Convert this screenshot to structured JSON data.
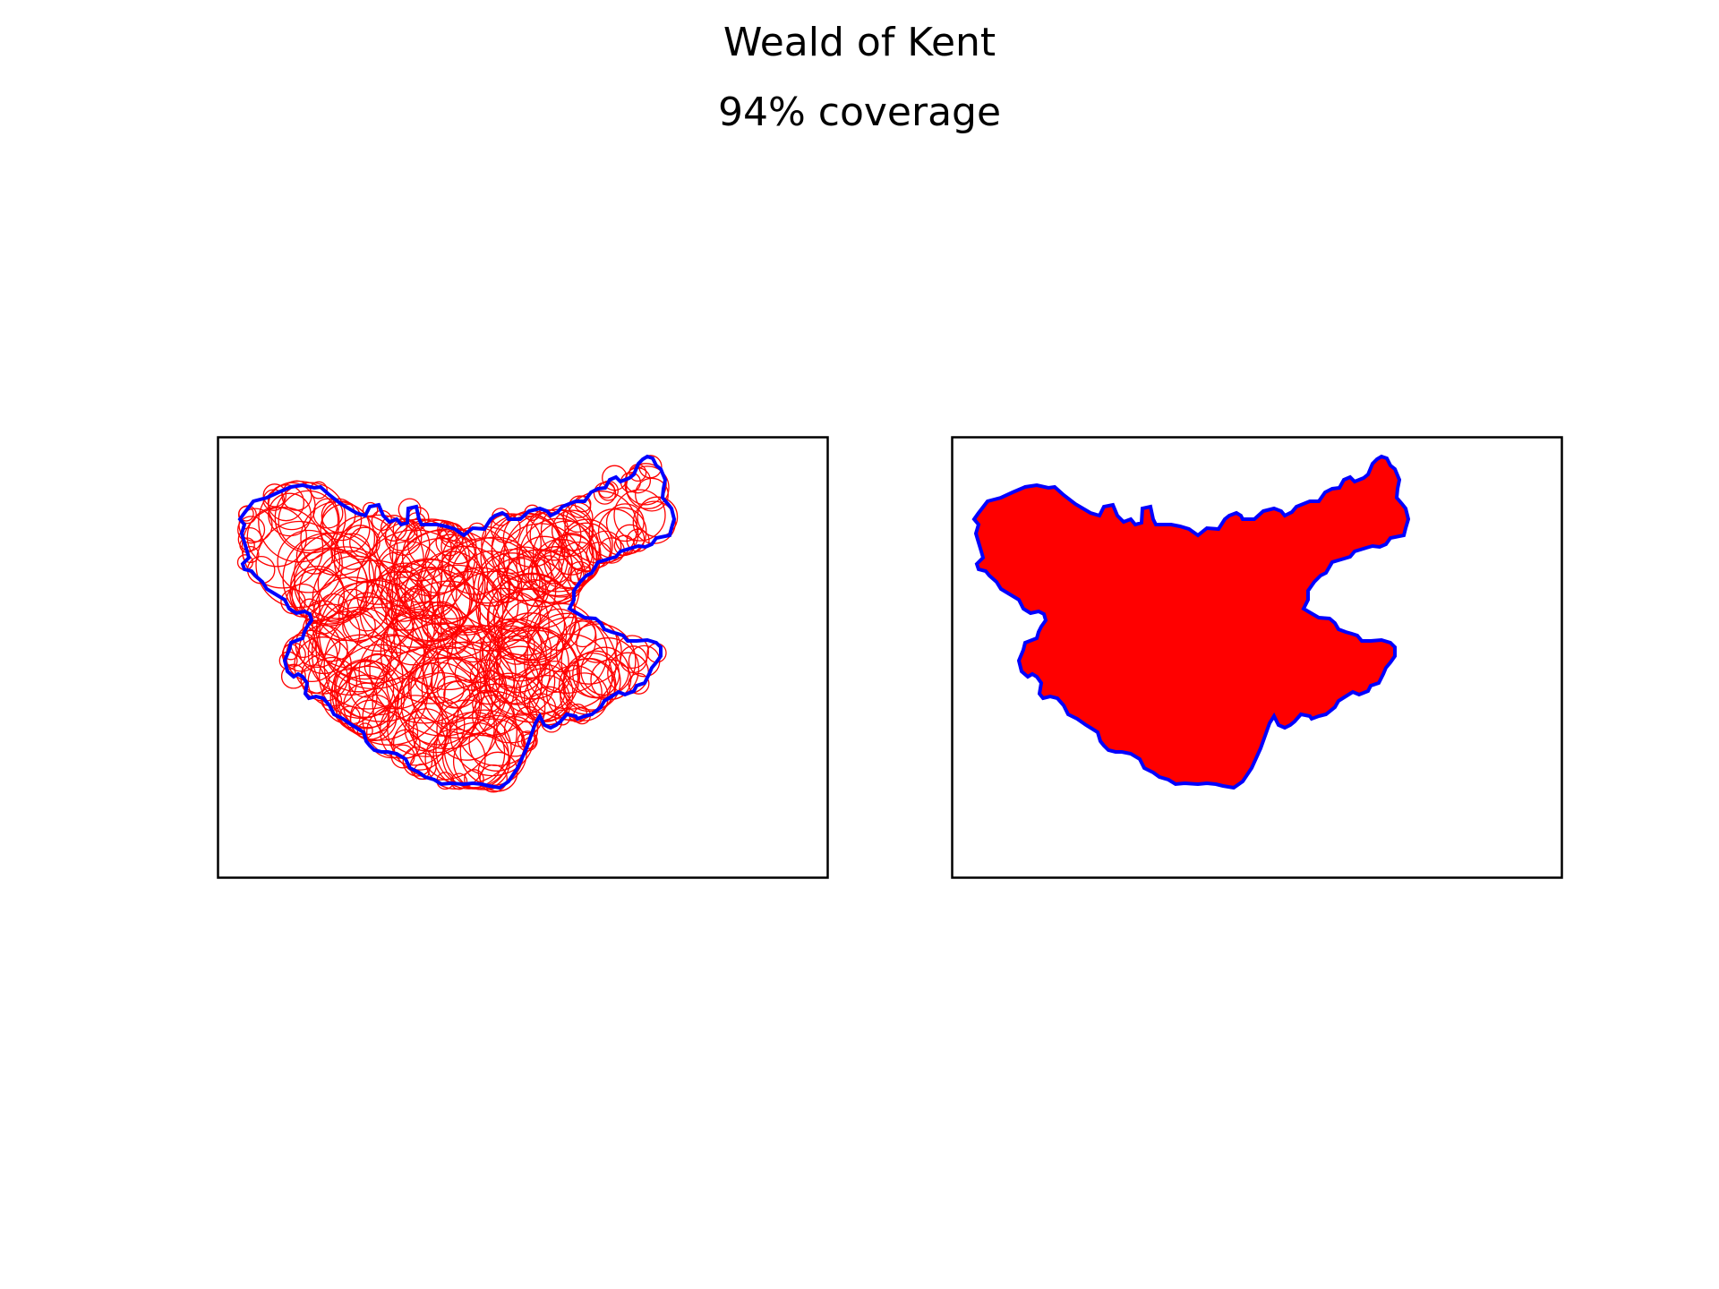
{
  "figure": {
    "title": "Weald of Kent",
    "subtitle": "94% coverage"
  },
  "colors": {
    "boundary": "#0000ff",
    "circles": "#ff0000",
    "fill": "#ff0000",
    "frame": "#000000"
  },
  "panels": [
    {
      "name": "circle-packing-panel",
      "style": "outline-circles"
    },
    {
      "name": "coverage-fill-panel",
      "style": "filled-union"
    }
  ]
}
